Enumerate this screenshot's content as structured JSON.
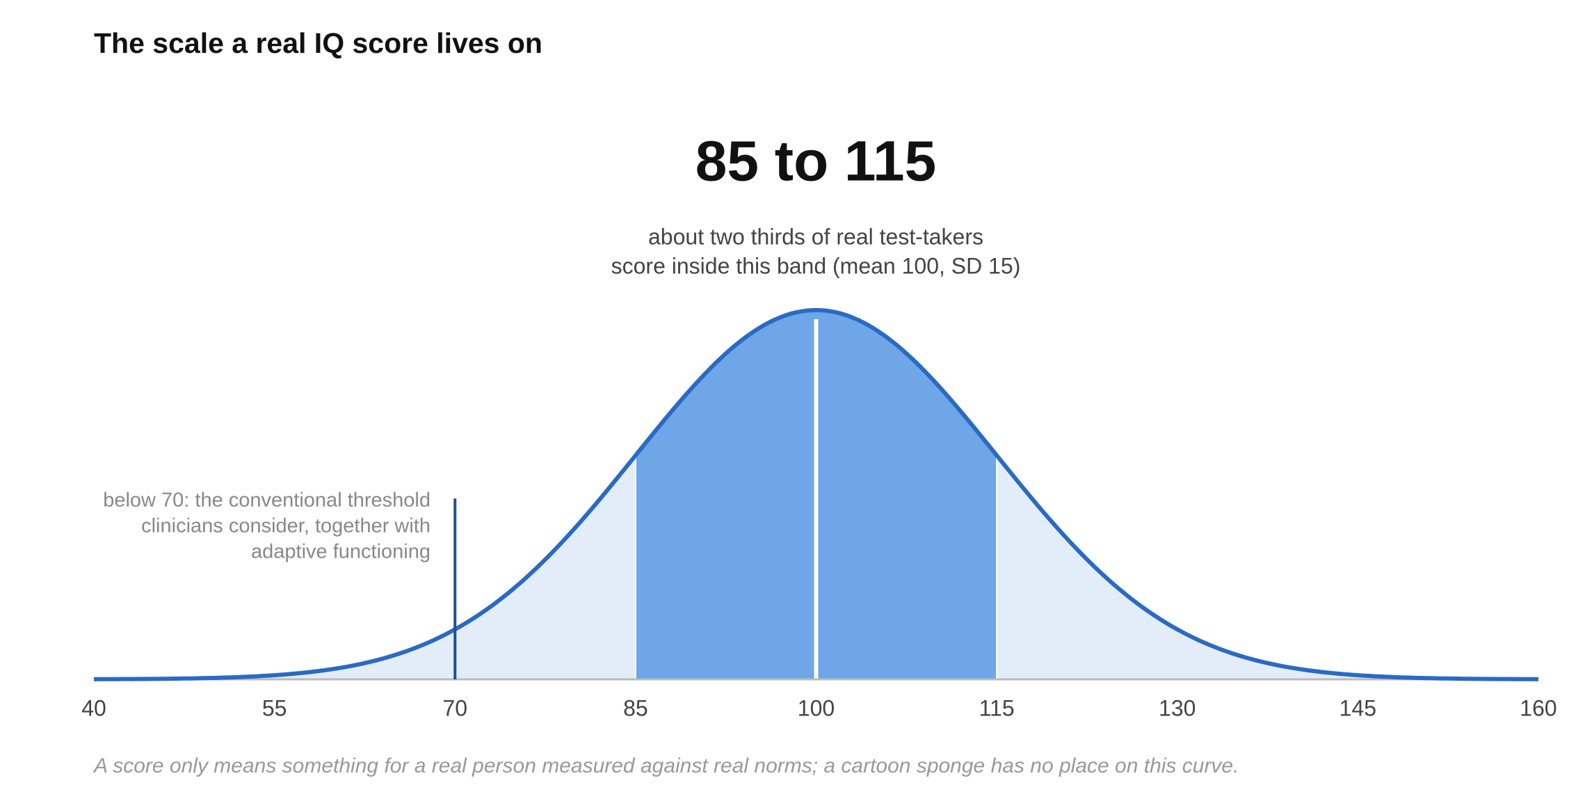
{
  "chart_data": {
    "type": "density",
    "title": "The scale a real IQ score lives on",
    "headline": "85 to 115",
    "subtitle": [
      "about two thirds of real test-takers",
      "score inside this band (mean 100, SD 15)"
    ],
    "mean": 100,
    "sd": 15,
    "band": [
      85,
      115
    ],
    "threshold": 70,
    "annotation": [
      "below 70: the conventional threshold",
      "clinicians consider, together with",
      "adaptive functioning"
    ],
    "caption": "A score only means something for a real person measured against real norms; a cartoon sponge has no place on this curve.",
    "xlim": [
      40,
      160
    ],
    "xticks": [
      40,
      55,
      70,
      85,
      100,
      115,
      130,
      145,
      160
    ],
    "color": "#2a6ac4",
    "band_color": "#6ea6e8",
    "fill_color": "#e3edf9",
    "threshold_color": "#1f4e99"
  }
}
